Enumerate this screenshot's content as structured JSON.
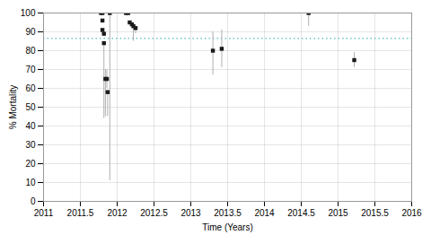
{
  "chart_data": {
    "type": "scatter",
    "xlabel": "Time (Years)",
    "ylabel": "% Mortality",
    "xlim": [
      2011,
      2016
    ],
    "ylim": [
      0,
      100
    ],
    "xticks": [
      2011,
      2011.5,
      2012,
      2012.5,
      2013,
      2013.5,
      2014,
      2014.5,
      2015,
      2015.5,
      2016
    ],
    "yticks": [
      0,
      10,
      20,
      30,
      40,
      50,
      60,
      70,
      80,
      90,
      100
    ],
    "grid": true,
    "marker": "square",
    "color": "#1a1a1a",
    "x": [
      2011.78,
      2011.8,
      2011.8,
      2011.8,
      2011.82,
      2011.82,
      2011.84,
      2011.86,
      2011.87,
      2011.9,
      2012.12,
      2012.15,
      2012.17,
      2012.2,
      2012.22,
      2012.25,
      2013.3,
      2013.42,
      2014.6,
      2015.22
    ],
    "values": [
      100,
      100,
      96,
      91,
      89,
      84,
      65,
      65,
      58,
      100,
      100,
      100,
      95,
      94,
      93,
      92,
      80,
      81,
      100,
      75
    ],
    "error_low": [
      0,
      0,
      0,
      0,
      0,
      40,
      20,
      5,
      13,
      89,
      0,
      0,
      0,
      0,
      8,
      3,
      13,
      10,
      7,
      4
    ],
    "error_high": [
      0,
      0,
      0,
      0,
      0,
      0,
      5,
      5,
      0,
      0,
      0,
      0,
      0,
      0,
      0,
      0,
      10,
      10,
      0,
      4
    ],
    "reference_line": {
      "y": 86.5,
      "color": "#6ec6d0",
      "line_style": "dotted"
    }
  }
}
